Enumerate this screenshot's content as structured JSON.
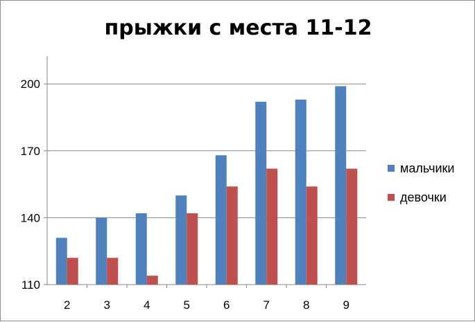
{
  "chart_data": {
    "type": "bar",
    "title": "прыжки с места 11-12",
    "categories": [
      "2",
      "3",
      "4",
      "5",
      "6",
      "7",
      "8",
      "9"
    ],
    "series": [
      {
        "name": "мальчики",
        "color": "#4F81BD",
        "values": [
          131,
          140,
          142,
          150,
          168,
          192,
          193,
          199
        ]
      },
      {
        "name": "девочки",
        "color": "#C0504D",
        "values": [
          122,
          122,
          114,
          142,
          154,
          162,
          154,
          162
        ]
      }
    ],
    "yticks": [
      110,
      140,
      170,
      200
    ],
    "ylim": [
      110,
      210
    ],
    "grid": true,
    "legend_position": "right"
  }
}
